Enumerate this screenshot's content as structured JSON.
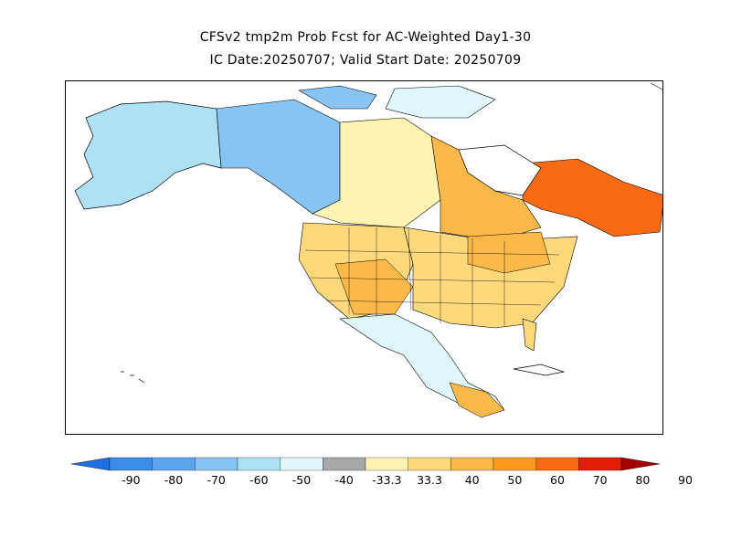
{
  "title_line1": "CFSv2 tmp2m Prob Fcst for AC-Weighted Day1-30",
  "title_line2": "IC Date:20250707; Valid Start Date: 20250709",
  "colorbar": {
    "labels": [
      "-90",
      "-80",
      "-70",
      "-60",
      "-50",
      "-40",
      "-33.3",
      "33.3",
      "40",
      "50",
      "60",
      "70",
      "80",
      "90"
    ],
    "colors": [
      "#1e6fe0",
      "#3b8ee8",
      "#5aa5ee",
      "#87c3f3",
      "#aee0f6",
      "#dff6fb",
      "#a8a8a8",
      "#fff3b4",
      "#fdd97c",
      "#fbb94a",
      "#fb9a1e",
      "#f96a12",
      "#e21e06",
      "#a50000"
    ]
  },
  "map": {
    "region": "North America",
    "variable": "tmp2m probability"
  }
}
